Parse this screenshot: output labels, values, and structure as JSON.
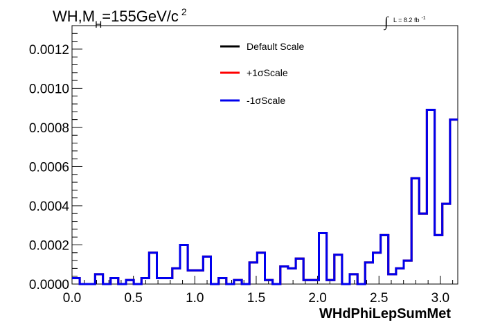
{
  "chart_data": {
    "type": "line",
    "title": {
      "prefix": "WH,M",
      "subscript": "H",
      "value": "=155GeV/c",
      "superscript": "2"
    },
    "lumi": {
      "integral_sign": "∫",
      "text": "L = 8.2 fb",
      "superscript": "-1"
    },
    "xlabel": "WHdPhiLepSumMet",
    "ylabel": "",
    "xlim": [
      0.0,
      3.1416
    ],
    "ylim": [
      0.0,
      0.00132
    ],
    "x_ticks": [
      "0.0",
      "0.5",
      "1.0",
      "1.5",
      "2.0",
      "2.5",
      "3.0"
    ],
    "x_tick_values": [
      0.0,
      0.5,
      1.0,
      1.5,
      2.0,
      2.5,
      3.0
    ],
    "y_ticks": [
      "0.0000",
      "0.0002",
      "0.0004",
      "0.0006",
      "0.0008",
      "0.0010",
      "0.0012"
    ],
    "y_tick_values": [
      0.0,
      0.0002,
      0.0004,
      0.0006,
      0.0008,
      0.001,
      0.0012
    ],
    "bin_edges": [
      0.0,
      0.0628,
      0.1257,
      0.1885,
      0.2513,
      0.3142,
      0.377,
      0.4398,
      0.5027,
      0.5655,
      0.6283,
      0.6912,
      0.754,
      0.8168,
      0.8796,
      0.9425,
      1.0053,
      1.0681,
      1.131,
      1.1938,
      1.2566,
      1.3195,
      1.3823,
      1.4451,
      1.508,
      1.5708,
      1.6336,
      1.6965,
      1.7593,
      1.8221,
      1.885,
      1.9478,
      2.0106,
      2.0735,
      2.1363,
      2.1991,
      2.2619,
      2.3248,
      2.3876,
      2.4504,
      2.5133,
      2.5761,
      2.6389,
      2.7018,
      2.7646,
      2.8274,
      2.8903,
      2.9531,
      3.0159,
      3.0788,
      3.1416
    ],
    "series": [
      {
        "name": "Default Scale",
        "color": "#000000",
        "values": [
          3e-05,
          0.0,
          0.0,
          5e-05,
          0.0,
          3e-05,
          0.0,
          2e-05,
          0.0,
          3e-05,
          0.00016,
          3e-05,
          3e-05,
          8e-05,
          0.0002,
          7e-05,
          7e-05,
          0.00014,
          0.0,
          3e-05,
          0.0,
          2e-05,
          0.0,
          0.00011,
          0.00016,
          2e-05,
          0.0,
          9e-05,
          8e-05,
          0.00013,
          2e-05,
          2e-05,
          0.00026,
          2e-05,
          0.00015,
          0.0,
          5e-05,
          0.0,
          0.00011,
          0.00016,
          0.00025,
          5e-05,
          8e-05,
          0.00012,
          0.00054,
          0.00036,
          0.00089,
          0.00025,
          0.00041,
          0.00084
        ]
      },
      {
        "name": "+1σScale",
        "color": "#ff0000",
        "values": [
          3e-05,
          0.0,
          0.0,
          5e-05,
          0.0,
          3e-05,
          0.0,
          2e-05,
          0.0,
          3e-05,
          0.00016,
          3e-05,
          3e-05,
          8e-05,
          0.0002,
          7e-05,
          7e-05,
          0.00014,
          0.0,
          3e-05,
          0.0,
          2e-05,
          0.0,
          0.00011,
          0.00016,
          2e-05,
          0.0,
          9e-05,
          8e-05,
          0.00013,
          2e-05,
          2e-05,
          0.00026,
          2e-05,
          0.00015,
          0.0,
          5e-05,
          0.0,
          0.00011,
          0.00016,
          0.00025,
          5e-05,
          8e-05,
          0.00012,
          0.00054,
          0.00036,
          0.00089,
          0.00025,
          0.00041,
          0.00084
        ]
      },
      {
        "name": "-1σScale",
        "color": "#0000ee",
        "values": [
          3e-05,
          0.0,
          0.0,
          5e-05,
          0.0,
          3e-05,
          0.0,
          2e-05,
          0.0,
          3e-05,
          0.00016,
          3e-05,
          3e-05,
          8e-05,
          0.0002,
          7e-05,
          7e-05,
          0.00014,
          0.0,
          3e-05,
          0.0,
          2e-05,
          0.0,
          0.00011,
          0.00016,
          2e-05,
          0.0,
          9e-05,
          8e-05,
          0.00013,
          2e-05,
          2e-05,
          0.00026,
          2e-05,
          0.00015,
          0.0,
          5e-05,
          0.0,
          0.00011,
          0.00016,
          0.00025,
          5e-05,
          8e-05,
          0.00012,
          0.00054,
          0.00036,
          0.00089,
          0.00025,
          0.00041,
          0.00084
        ]
      }
    ],
    "legend_position": "top-center",
    "grid": false
  }
}
